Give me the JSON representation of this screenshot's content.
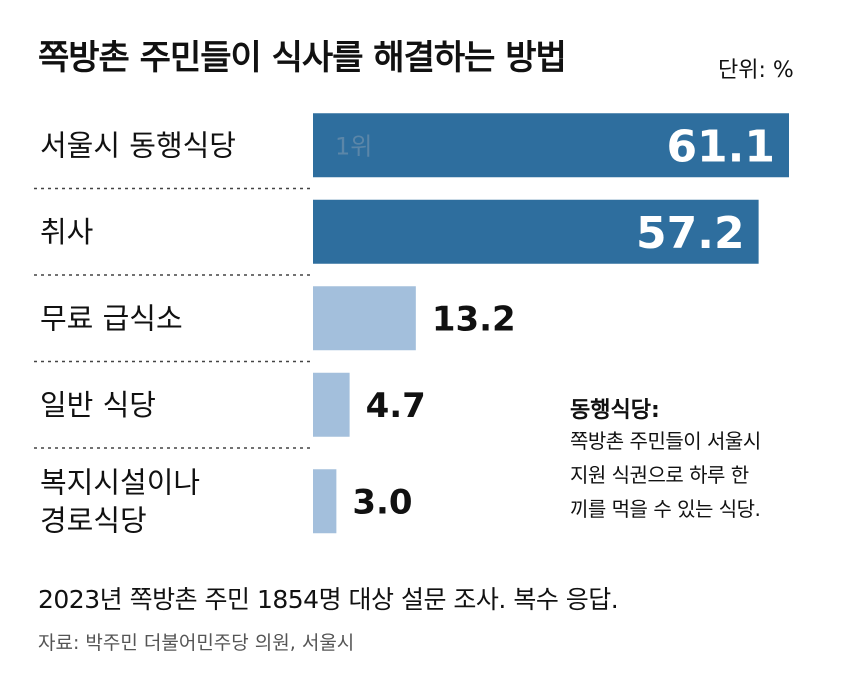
{
  "title": "쪽방촌 주민들이 식사를 해결하는 방법",
  "unit_label": "단위: %",
  "colors": {
    "top_bar": "#2e6e9e",
    "other_bar": "#a3bfdc",
    "rank_text": "#5b86a8",
    "text": "#111111",
    "divider": "#444444"
  },
  "chart_data": {
    "type": "bar",
    "orientation": "horizontal",
    "categories": [
      "서울시 동행식당",
      "취사",
      "무료 급식소",
      "일반 식당",
      "복지시설이나\n경로식당"
    ],
    "values": [
      61.1,
      57.2,
      13.2,
      4.7,
      3.0
    ],
    "value_labels": [
      "61.1",
      "57.2",
      "13.2",
      "4.7",
      "3.0"
    ],
    "xlim": [
      0,
      66
    ],
    "annotations": [
      {
        "category": "서울시 동행식당",
        "text": "1위"
      }
    ]
  },
  "note": {
    "title": "동행식당:",
    "body": "쪽방촌 주민들이 서울시\n지원 식권으로 하루 한\n끼를 먹을 수 있는 식당."
  },
  "footnote": "2023년 쪽방촌 주민 1854명 대상 설문 조사. 복수 응답.",
  "source": "자료: 박주민 더불어민주당 의원, 서울시"
}
